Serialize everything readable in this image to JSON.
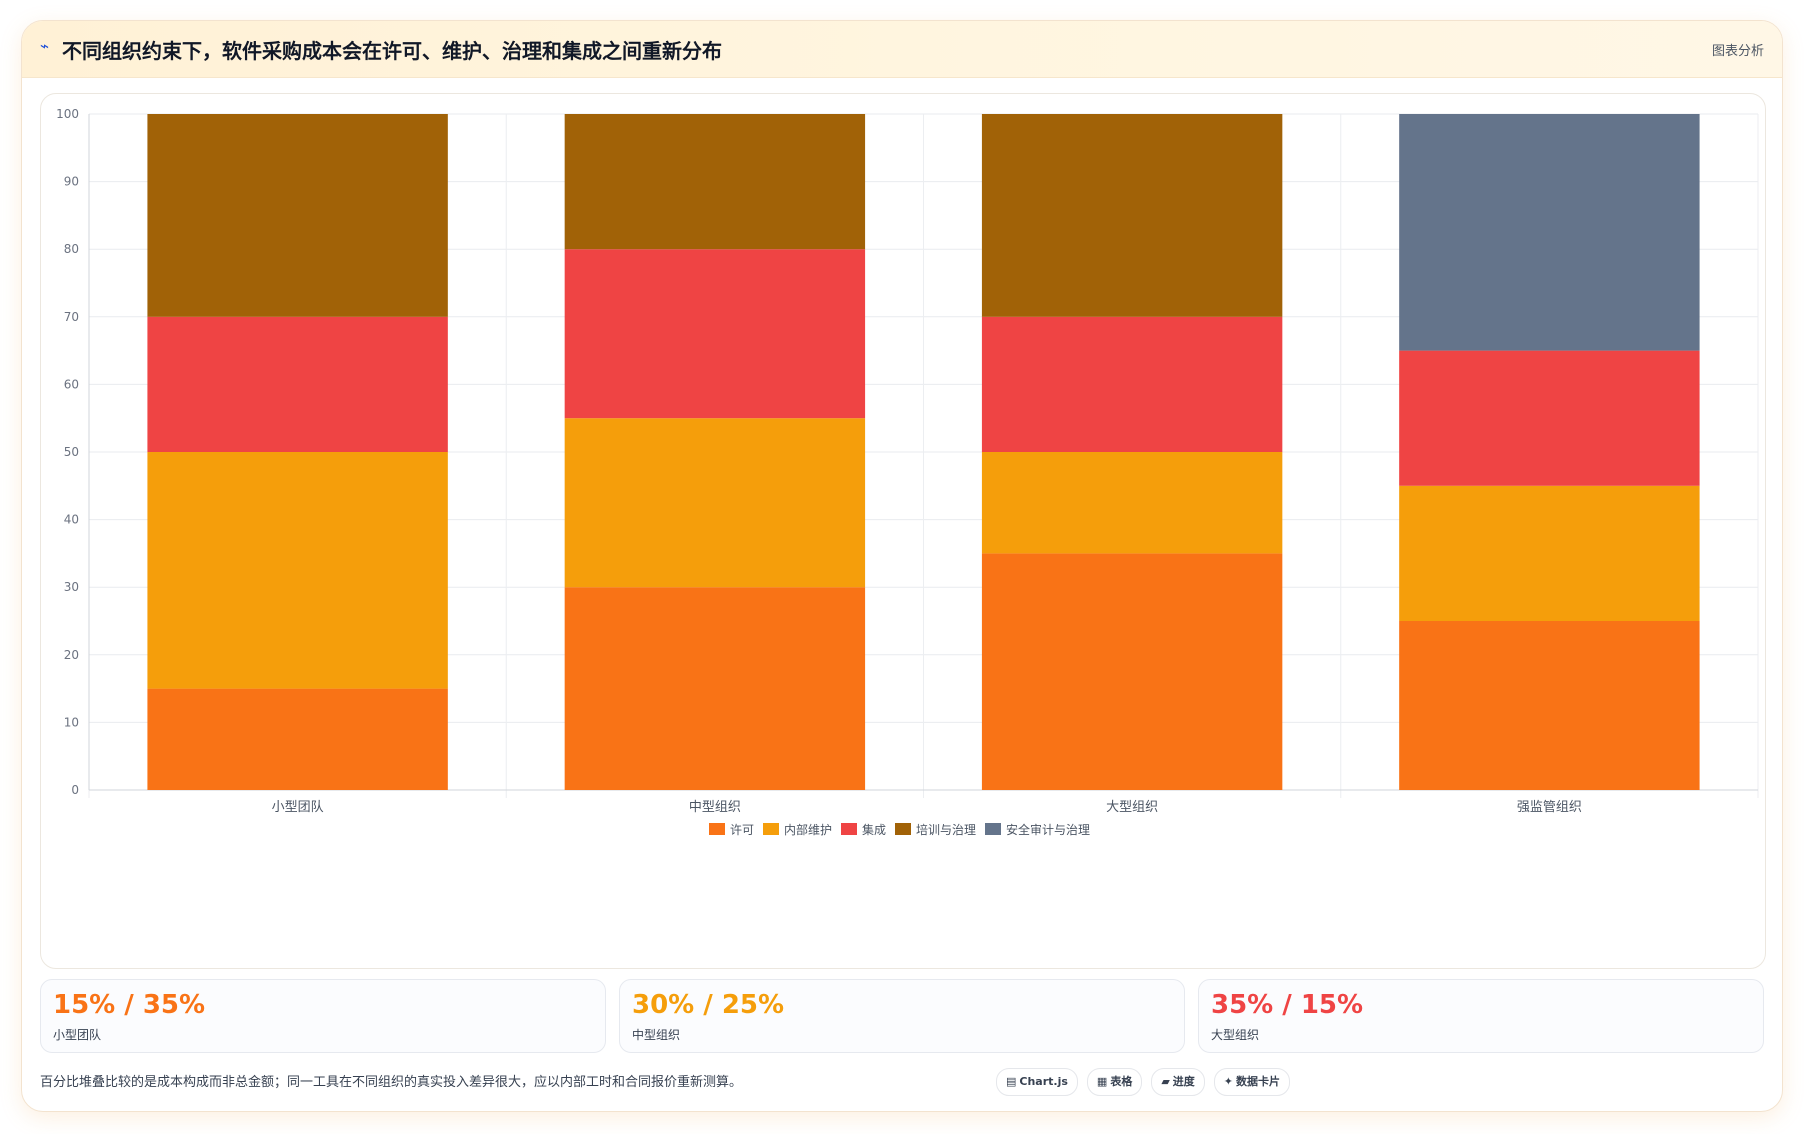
{
  "header": {
    "icon": "lightning-icon",
    "title": "不同组织约束下，软件采购成本会在许可、维护、治理和集成之间重新分布",
    "tag": "图表分析"
  },
  "chart_data": {
    "type": "bar",
    "stacked": true,
    "categories": [
      "小型团队",
      "中型组织",
      "大型组织",
      "强监管组织"
    ],
    "series": [
      {
        "name": "许可",
        "color": "#f97316",
        "values": [
          15,
          30,
          35,
          25
        ]
      },
      {
        "name": "内部维护",
        "color": "#f59e0b",
        "values": [
          35,
          25,
          15,
          20
        ]
      },
      {
        "name": "集成",
        "color": "#ef4444",
        "values": [
          20,
          25,
          20,
          20
        ]
      },
      {
        "name": "培训与治理",
        "color": "#a16207",
        "values": [
          30,
          20,
          30,
          0
        ]
      },
      {
        "name": "安全审计与治理",
        "color": "#64748b",
        "values": [
          0,
          0,
          0,
          35
        ]
      }
    ],
    "yticks": [
      0,
      10,
      20,
      30,
      40,
      50,
      60,
      70,
      80,
      90,
      100
    ],
    "ylim": [
      0,
      100
    ],
    "grid": true,
    "legend_position": "bottom"
  },
  "stats": [
    {
      "value": "15% / 35%",
      "label": "小型团队",
      "color": "#f97316"
    },
    {
      "value": "30% / 25%",
      "label": "中型组织",
      "color": "#f59e0b"
    },
    {
      "value": "35% / 15%",
      "label": "大型组织",
      "color": "#ef4444"
    }
  ],
  "footnote": "百分比堆叠比较的是成本构成而非总金额；同一工具在不同组织的真实投入差异很大，应以内部工时和合同报价重新测算。",
  "chips": [
    {
      "icon": "▤",
      "icon_name": "chart-icon",
      "label": "Chart.js"
    },
    {
      "icon": "▦",
      "icon_name": "table-icon",
      "label": "表格"
    },
    {
      "icon": "▰",
      "icon_name": "progress-icon",
      "label": "进度"
    },
    {
      "icon": "✦",
      "icon_name": "card-icon",
      "label": "数据卡片"
    }
  ]
}
